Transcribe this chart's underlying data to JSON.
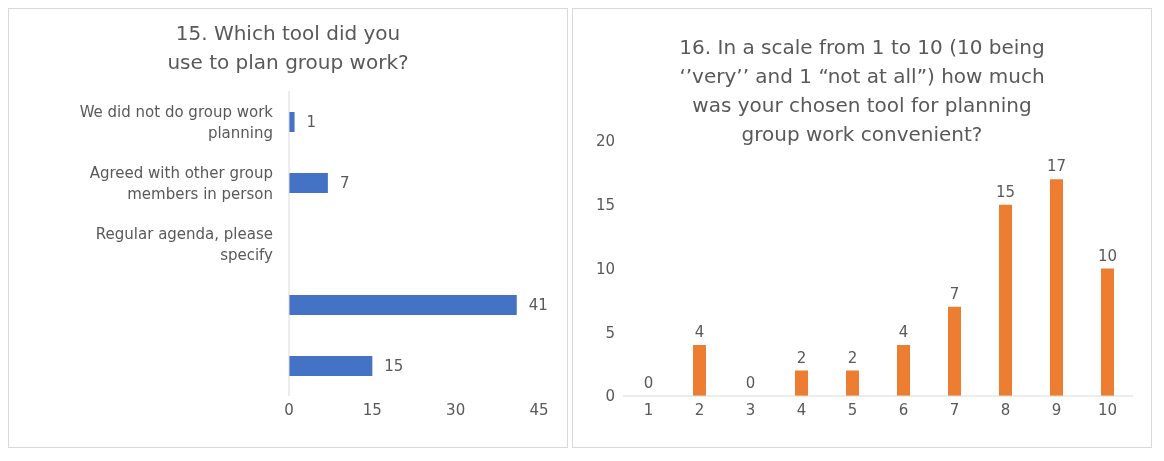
{
  "chart_data": [
    {
      "type": "bar",
      "orientation": "horizontal",
      "title": "15.   Which tool did you use to plan group work?",
      "categories": [
        "We did not do group work planning",
        "Agreed with other group members in person",
        "Regular agenda, please specify",
        null,
        null
      ],
      "values": [
        1,
        7,
        0,
        41,
        15
      ],
      "value_labels": [
        "1",
        "7",
        null,
        "41",
        "15"
      ],
      "color": "#4472c4",
      "xlim": [
        0,
        45
      ],
      "xticks": [
        0,
        15,
        30,
        45
      ]
    },
    {
      "type": "bar",
      "title": "16.   In a scale from 1 to 10 (10 being ‘’very’’ and 1 “not at all”)   how much was your chosen tool for planning group work convenient?",
      "categories": [
        "1",
        "2",
        "3",
        "4",
        "5",
        "6",
        "7",
        "8",
        "9",
        "10"
      ],
      "values": [
        0,
        4,
        0,
        2,
        2,
        4,
        7,
        15,
        17,
        10
      ],
      "data_labels": true,
      "color": "#ed7d31",
      "ylim": [
        0,
        20
      ],
      "yticks": [
        0,
        5,
        10,
        15,
        20
      ]
    }
  ]
}
